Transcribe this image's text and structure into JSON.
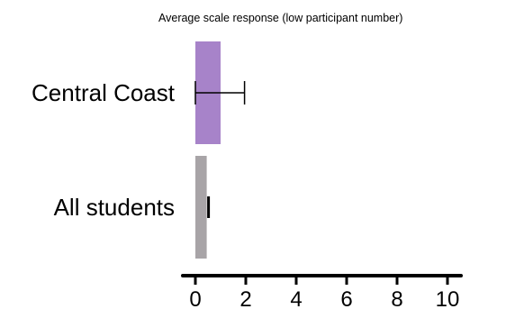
{
  "chart_data": {
    "type": "bar",
    "orientation": "horizontal",
    "title": "Average scale response (low participant number)",
    "xlabel": "",
    "ylabel": "",
    "categories": [
      "Central Coast",
      "All students"
    ],
    "values": [
      1.0,
      0.45
    ],
    "error": [
      {
        "low": 0.0,
        "high": 1.95
      },
      {
        "low": 0.45,
        "high": 0.45
      }
    ],
    "colors": [
      "#a783c9",
      "#a8a4a7"
    ],
    "xlim": [
      0,
      10
    ],
    "xticks": [
      0,
      2,
      4,
      6,
      8,
      10
    ],
    "tick_labels": [
      "0",
      "2",
      "4",
      "6",
      "8",
      "10"
    ],
    "grid": false,
    "legend": "none"
  }
}
